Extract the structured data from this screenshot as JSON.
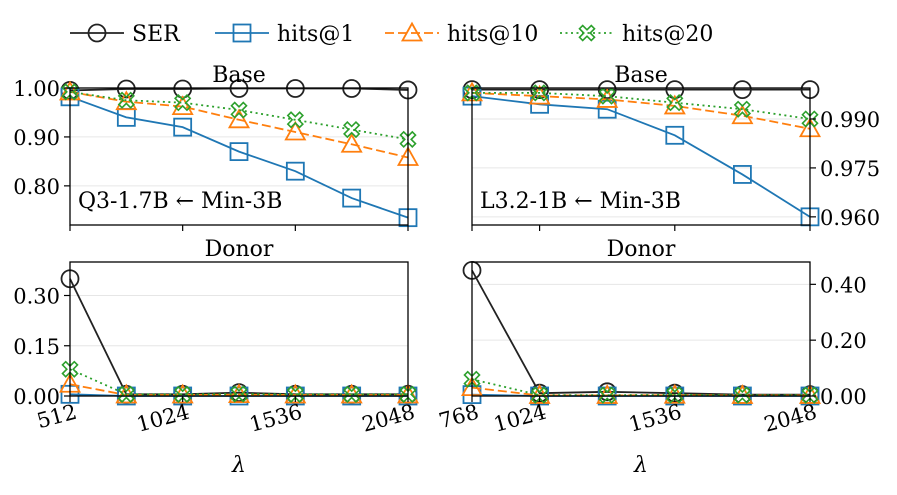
{
  "legend": [
    {
      "key": "SER",
      "label": "SER",
      "color": "#222222",
      "marker": "circle",
      "dash": "solid"
    },
    {
      "key": "hits1",
      "label": "hits@1",
      "color": "#1f77b4",
      "marker": "square",
      "dash": "solid"
    },
    {
      "key": "hits10",
      "label": "hits@10",
      "color": "#ff7f0e",
      "marker": "triangle",
      "dash": "dashed"
    },
    {
      "key": "hits20",
      "label": "hits@20",
      "color": "#2ca02c",
      "marker": "xsquare",
      "dash": "dotted"
    }
  ],
  "chart_data": [
    {
      "type": "line",
      "panel": "left-top",
      "title": "Base",
      "annotation": "Q3-1.7B ← Min-3B",
      "xlabel": "",
      "ylabel": "",
      "y_axis_side": "left",
      "x": [
        512,
        768,
        1024,
        1280,
        1536,
        1792,
        2048
      ],
      "xticks": [
        512,
        1024,
        1536,
        2048
      ],
      "xlim": [
        512,
        2048
      ],
      "ylim": [
        0.72,
        1.0
      ],
      "yticks": [
        0.8,
        0.9,
        1.0
      ],
      "ytick_labels": [
        "0.80",
        "0.90",
        "1.00"
      ],
      "series": [
        {
          "name": "SER",
          "values": [
            0.995,
            0.998,
            0.998,
            0.999,
            0.999,
            0.999,
            0.996
          ]
        },
        {
          "name": "hits@1",
          "values": [
            0.982,
            0.94,
            0.92,
            0.87,
            0.83,
            0.775,
            0.735
          ]
        },
        {
          "name": "hits@10",
          "values": [
            0.992,
            0.972,
            0.962,
            0.935,
            0.91,
            0.885,
            0.858
          ]
        },
        {
          "name": "hits@20",
          "values": [
            0.992,
            0.975,
            0.97,
            0.955,
            0.935,
            0.915,
            0.895
          ]
        }
      ]
    },
    {
      "type": "line",
      "panel": "right-top",
      "title": "Base",
      "annotation": "L3.2-1B ← Min-3B",
      "xlabel": "",
      "ylabel": "",
      "y_axis_side": "right",
      "x": [
        768,
        1024,
        1280,
        1536,
        1792,
        2048
      ],
      "xticks": [
        768,
        1024,
        1536,
        2048
      ],
      "xlim": [
        768,
        2048
      ],
      "ylim": [
        0.9575,
        0.9995
      ],
      "yticks": [
        0.96,
        0.975,
        0.99
      ],
      "ytick_labels": [
        "0.960",
        "0.975",
        "0.990"
      ],
      "series": [
        {
          "name": "SER",
          "values": [
            0.999,
            0.999,
            0.999,
            0.999,
            0.999,
            0.999
          ]
        },
        {
          "name": "hits@1",
          "values": [
            0.997,
            0.9945,
            0.993,
            0.985,
            0.973,
            0.96
          ]
        },
        {
          "name": "hits@10",
          "values": [
            0.998,
            0.997,
            0.996,
            0.994,
            0.991,
            0.987
          ]
        },
        {
          "name": "hits@20",
          "values": [
            0.998,
            0.998,
            0.997,
            0.995,
            0.993,
            0.99
          ]
        }
      ]
    },
    {
      "type": "line",
      "panel": "left-bottom",
      "title": "Donor",
      "annotation": "",
      "xlabel": "λ",
      "ylabel": "",
      "y_axis_side": "left",
      "x": [
        512,
        768,
        1024,
        1280,
        1536,
        1792,
        2048
      ],
      "xticks": [
        512,
        1024,
        1536,
        2048
      ],
      "xlim": [
        512,
        2048
      ],
      "ylim": [
        0.0,
        0.4
      ],
      "yticks": [
        0.0,
        0.15,
        0.3
      ],
      "ytick_labels": [
        "0.00",
        "0.15",
        "0.30"
      ],
      "series": [
        {
          "name": "SER",
          "values": [
            0.35,
            0.005,
            0.005,
            0.01,
            0.005,
            0.005,
            0.005
          ]
        },
        {
          "name": "hits@1",
          "values": [
            0.005,
            0.0,
            0.0,
            0.0,
            0.0,
            0.0,
            0.0
          ]
        },
        {
          "name": "hits@10",
          "values": [
            0.035,
            0.003,
            0.003,
            0.004,
            0.003,
            0.003,
            0.003
          ]
        },
        {
          "name": "hits@20",
          "values": [
            0.08,
            0.005,
            0.005,
            0.006,
            0.005,
            0.005,
            0.005
          ]
        }
      ]
    },
    {
      "type": "line",
      "panel": "right-bottom",
      "title": "Donor",
      "annotation": "",
      "xlabel": "λ",
      "ylabel": "",
      "y_axis_side": "right",
      "x": [
        768,
        1024,
        1280,
        1536,
        1792,
        2048
      ],
      "xticks": [
        768,
        1024,
        1536,
        2048
      ],
      "xlim": [
        768,
        2048
      ],
      "ylim": [
        0.0,
        0.48
      ],
      "yticks": [
        0.0,
        0.2,
        0.4
      ],
      "ytick_labels": [
        "0.00",
        "0.20",
        "0.40"
      ],
      "series": [
        {
          "name": "SER",
          "values": [
            0.45,
            0.01,
            0.015,
            0.01,
            0.005,
            0.005
          ]
        },
        {
          "name": "hits@1",
          "values": [
            0.005,
            0.0,
            0.0,
            0.0,
            0.0,
            0.0
          ]
        },
        {
          "name": "hits@10",
          "values": [
            0.03,
            0.002,
            0.002,
            0.003,
            0.002,
            0.002
          ]
        },
        {
          "name": "hits@20",
          "values": [
            0.06,
            0.003,
            0.003,
            0.004,
            0.003,
            0.003
          ]
        }
      ]
    }
  ]
}
